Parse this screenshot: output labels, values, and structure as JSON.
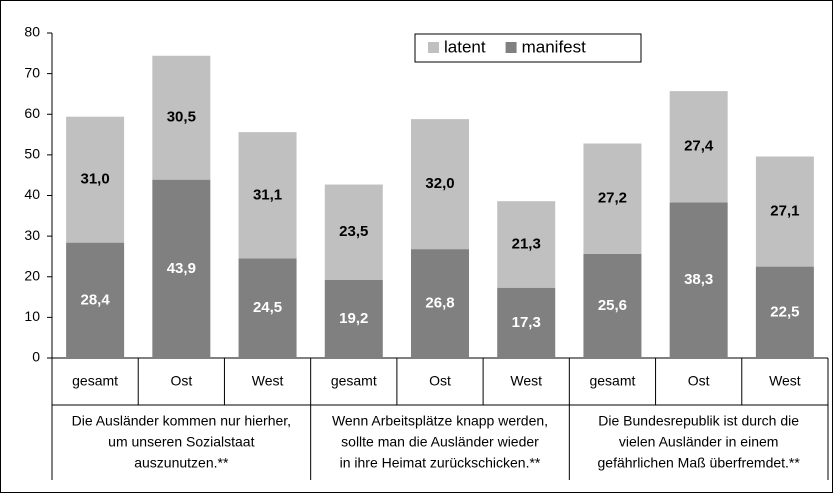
{
  "chart_data": {
    "type": "bar",
    "stacked": true,
    "categories": [
      "gesamt",
      "Ost",
      "West",
      "gesamt",
      "Ost",
      "West",
      "gesamt",
      "Ost",
      "West"
    ],
    "groups": [
      [
        "Die Ausländer kommen nur hierher,",
        "um unseren Sozialstaat",
        "auszunutzen.**"
      ],
      [
        "Wenn Arbeitsplätze knapp werden,",
        "sollte man die Ausländer wieder",
        "in ihre Heimat zurückschicken.**"
      ],
      [
        "Die Bundesrepublik ist durch die",
        "vielen Ausländer in einem",
        "gefährlichen Maß überfremdet.**"
      ]
    ],
    "series": [
      {
        "name": "manifest",
        "color": "#808080",
        "label_color": "#ffffff",
        "values": [
          28.4,
          43.9,
          24.5,
          19.2,
          26.8,
          17.3,
          25.6,
          38.3,
          22.5
        ],
        "value_labels": [
          "28,4",
          "43,9",
          "24,5",
          "19,2",
          "26,8",
          "17,3",
          "25,6",
          "38,3",
          "22,5"
        ]
      },
      {
        "name": "latent",
        "color": "#c0c0c0",
        "label_color": "#000000",
        "values": [
          31.0,
          30.5,
          31.1,
          23.5,
          32.0,
          21.3,
          27.2,
          27.4,
          27.1
        ],
        "value_labels": [
          "31,0",
          "30,5",
          "31,1",
          "23,5",
          "32,0",
          "21,3",
          "27,2",
          "27,4",
          "27,1"
        ]
      }
    ],
    "legend_order": [
      1,
      0
    ],
    "ylim": [
      0,
      80
    ],
    "yticks": [
      0,
      10,
      20,
      30,
      40,
      50,
      60,
      70,
      80
    ],
    "grid": false
  }
}
